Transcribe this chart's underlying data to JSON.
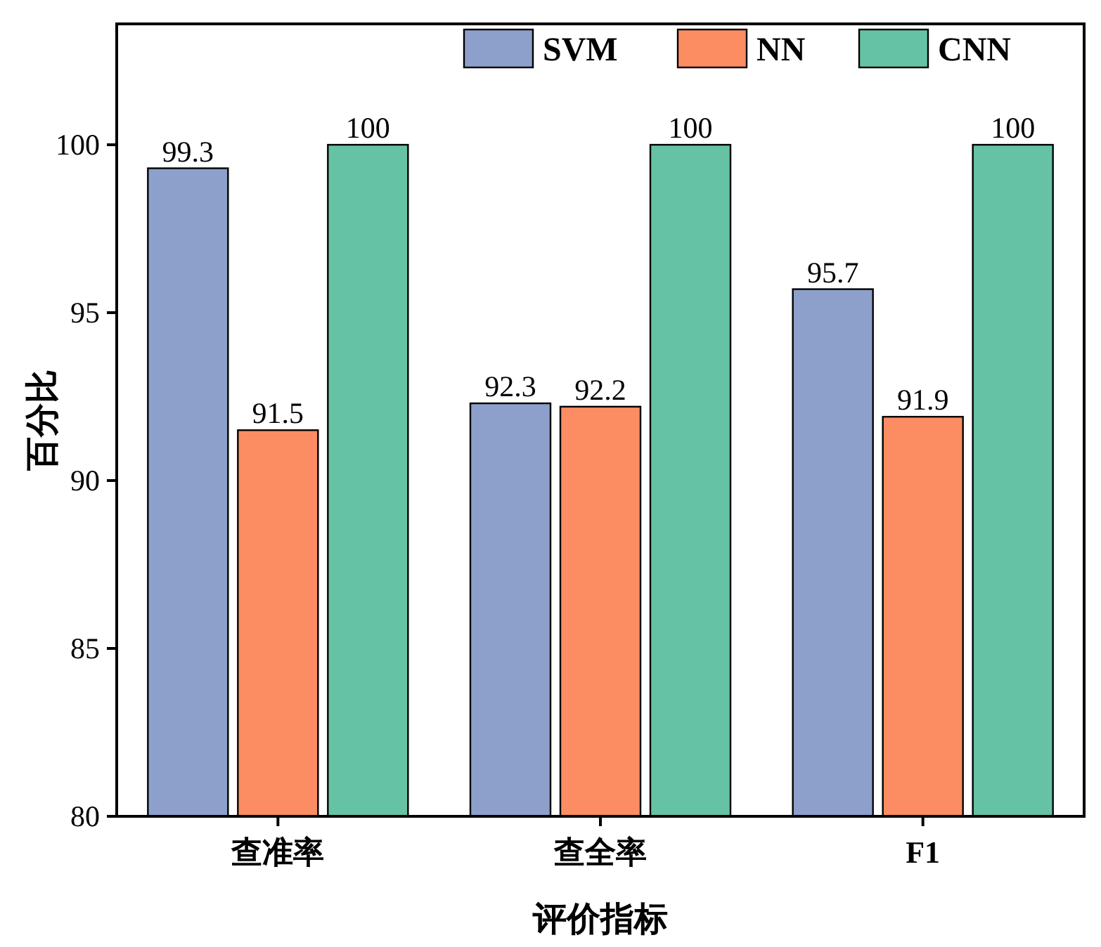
{
  "chart_data": {
    "type": "bar",
    "xlabel": "评价指标",
    "ylabel": "百分比",
    "categories": [
      "查准率",
      "查全率",
      "F1"
    ],
    "series": [
      {
        "name": "SVM",
        "color": "#8da0cb",
        "values": [
          99.3,
          92.3,
          95.7
        ]
      },
      {
        "name": "NN",
        "color": "#fc8d62",
        "values": [
          91.5,
          92.2,
          91.9
        ]
      },
      {
        "name": "CNN",
        "color": "#66c2a5",
        "values": [
          100,
          100,
          100
        ]
      }
    ],
    "ylim": [
      80,
      103.6
    ],
    "yticks": [
      80,
      85,
      90,
      95,
      100
    ],
    "data_labels": true,
    "legend": "top right",
    "grid": false
  }
}
